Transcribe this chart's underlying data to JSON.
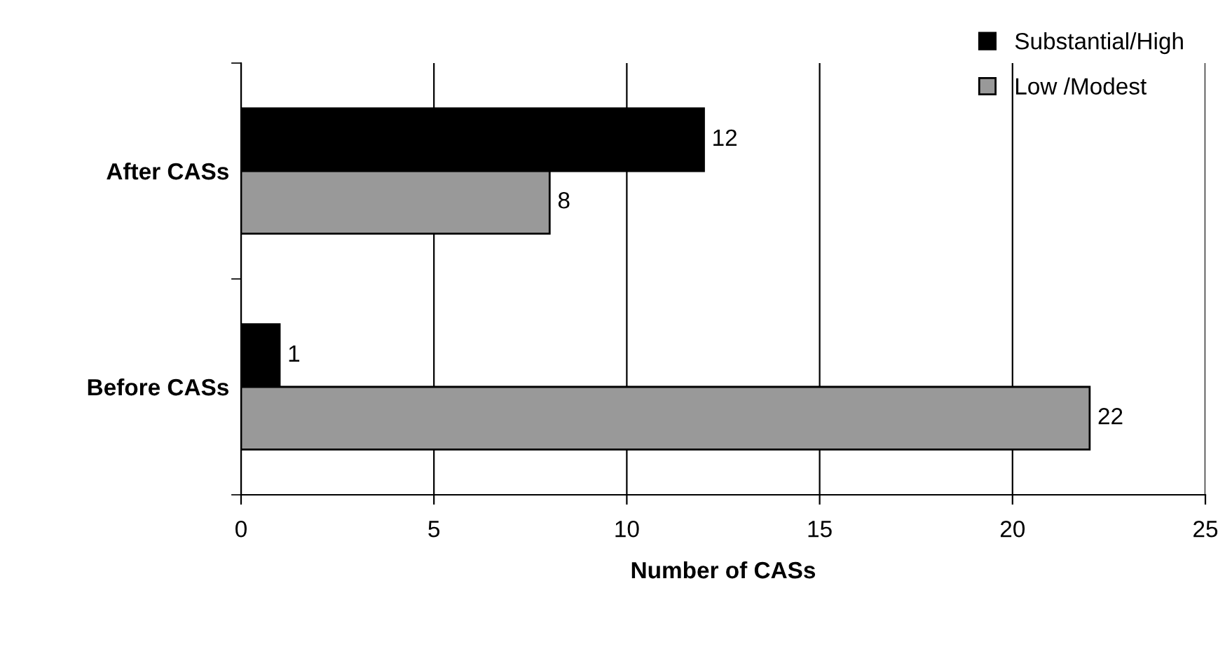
{
  "chart_data": {
    "type": "bar",
    "orientation": "horizontal",
    "xlabel": "Number of CASs",
    "categories": [
      "After CASs",
      "Before CASs"
    ],
    "series": [
      {
        "name": "Substantial/High",
        "color": "#000000",
        "values": [
          12,
          1
        ]
      },
      {
        "name": "Low /Modest",
        "color": "#999999",
        "values": [
          8,
          22
        ]
      }
    ],
    "xlim": [
      0,
      25
    ],
    "xticks": [
      0,
      5,
      10,
      15,
      20,
      25
    ],
    "grid": "x",
    "legend": "top right",
    "data_labels": true
  }
}
